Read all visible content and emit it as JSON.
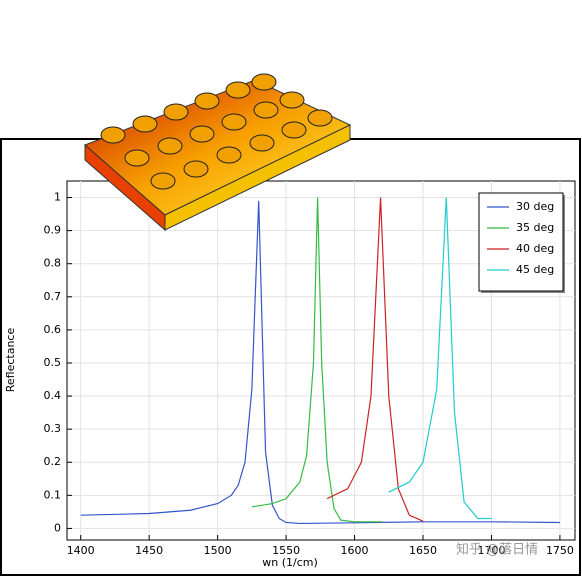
{
  "chart_data": {
    "type": "line",
    "xlabel": "wn (1/cm)",
    "ylabel": "Reflectance",
    "xlim": [
      1390,
      1761
    ],
    "ylim": [
      -0.035,
      1.05
    ],
    "xticks": [
      1400,
      1450,
      1500,
      1550,
      1600,
      1650,
      1700,
      1750
    ],
    "yticks": [
      0,
      0.1,
      0.2,
      0.3,
      0.4,
      0.5,
      0.6,
      0.7,
      0.8,
      0.9,
      1
    ],
    "grid": true,
    "legend": "upper right",
    "watermark": "知乎 @落日情",
    "series": [
      {
        "name": "30 deg",
        "color": "#3355cc",
        "x": [
          1400,
          1450,
          1480,
          1500,
          1510,
          1515,
          1520,
          1525,
          1530,
          1535,
          1540,
          1545,
          1550,
          1560,
          1600,
          1650,
          1700,
          1750
        ],
        "values": [
          0.04,
          0.045,
          0.055,
          0.075,
          0.1,
          0.13,
          0.2,
          0.42,
          0.99,
          0.23,
          0.07,
          0.03,
          0.018,
          0.015,
          0.017,
          0.02,
          0.02,
          0.018
        ]
      },
      {
        "name": "35 deg",
        "color": "#33bb44",
        "x": [
          1525,
          1540,
          1550,
          1560,
          1565,
          1570,
          1573,
          1576,
          1580,
          1585,
          1590,
          1600,
          1620
        ],
        "values": [
          0.065,
          0.075,
          0.09,
          0.14,
          0.22,
          0.5,
          1.0,
          0.5,
          0.2,
          0.06,
          0.025,
          0.02,
          0.02
        ]
      },
      {
        "name": "40 deg",
        "color": "#cc2222",
        "x": [
          1580,
          1595,
          1605,
          1612,
          1619,
          1625,
          1632,
          1640,
          1650
        ],
        "values": [
          0.09,
          0.12,
          0.2,
          0.4,
          1.0,
          0.4,
          0.12,
          0.04,
          0.022
        ]
      },
      {
        "name": "45 deg",
        "color": "#22cccc",
        "x": [
          1625,
          1640,
          1650,
          1660,
          1667,
          1673,
          1680,
          1690,
          1700
        ],
        "values": [
          0.11,
          0.14,
          0.2,
          0.42,
          1.0,
          0.35,
          0.08,
          0.03,
          0.03
        ]
      }
    ]
  }
}
